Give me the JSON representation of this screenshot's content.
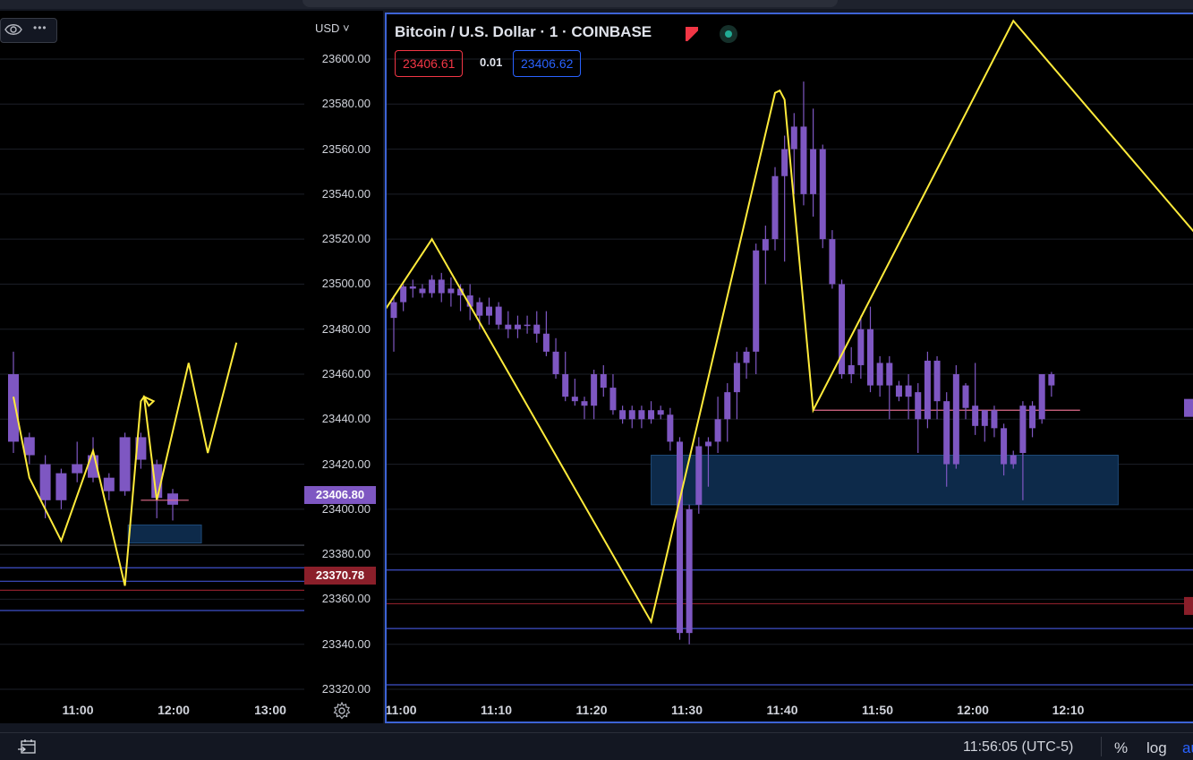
{
  "colors": {
    "candle": "#7e57c2",
    "zigzag": "#ffeb3b",
    "box_fill": "#0d2a4a",
    "box_stroke": "#1e4a78",
    "pane_border": "#3d63d6",
    "bid": "#f23645",
    "ask": "#2962ff",
    "hline_blue": "#3f4fc9",
    "hline_red": "#8b1f2a",
    "hline_pink": "#e06c8c"
  },
  "left_pane": {
    "toolbar": {
      "eye_icon": "eye-icon",
      "more_icon": "more-dots-icon",
      "more_label": "•••"
    },
    "currency_label": "USD ˅",
    "y_ticks": [
      "23600.00",
      "23580.00",
      "23560.00",
      "23540.00",
      "23520.00",
      "23500.00",
      "23480.00",
      "23460.00",
      "23440.00",
      "23420.00",
      "23400.00",
      "23380.00",
      "23360.00",
      "23340.00",
      "23320.00"
    ],
    "price_tag": "23406.80",
    "price_tag_2": "23370.78",
    "x_labels": [
      "11:00",
      "12:00",
      "13:00"
    ],
    "settings_icon": "gear-icon"
  },
  "right_pane": {
    "title": "Bitcoin / U.S. Dollar · 1 · COINBASE",
    "bid": "23406.61",
    "spread": "0.01",
    "ask": "23406.62",
    "x_labels": [
      "11:00",
      "11:10",
      "11:20",
      "11:30",
      "11:40",
      "11:50",
      "12:00",
      "12:10"
    ]
  },
  "chart_data": [
    {
      "type": "candlestick",
      "title": "Bitcoin / U.S. Dollar · 1 · COINBASE",
      "x_unit": "minutes",
      "ylim": [
        23318,
        23610
      ],
      "xlim_labels": [
        "11:00",
        "12:10"
      ],
      "candles": [
        [
          0,
          23485,
          23492,
          23470,
          23495
        ],
        [
          1,
          23492,
          23499,
          23488,
          23500
        ],
        [
          2,
          23499,
          23498,
          23494,
          23502
        ],
        [
          3,
          23498,
          23496,
          23494,
          23500
        ],
        [
          4,
          23496,
          23502,
          23494,
          23504
        ],
        [
          5,
          23502,
          23496,
          23492,
          23505
        ],
        [
          6,
          23496,
          23498,
          23490,
          23503
        ],
        [
          7,
          23498,
          23495,
          23488,
          23500
        ],
        [
          8,
          23495,
          23490,
          23484,
          23500
        ],
        [
          9,
          23492,
          23486,
          23480,
          23494
        ],
        [
          10,
          23486,
          23490,
          23482,
          23494
        ],
        [
          11,
          23490,
          23482,
          23480,
          23492
        ],
        [
          12,
          23482,
          23480,
          23476,
          23488
        ],
        [
          13,
          23480,
          23482,
          23476,
          23486
        ],
        [
          14,
          23482,
          23482,
          23478,
          23486
        ],
        [
          15,
          23482,
          23478,
          23474,
          23488
        ],
        [
          16,
          23478,
          23470,
          23468,
          23488
        ],
        [
          17,
          23470,
          23460,
          23458,
          23476
        ],
        [
          18,
          23460,
          23450,
          23448,
          23470
        ],
        [
          19,
          23450,
          23448,
          23446,
          23458
        ],
        [
          20,
          23448,
          23446,
          23440,
          23450
        ],
        [
          21,
          23446,
          23460,
          23440,
          23462
        ],
        [
          22,
          23460,
          23454,
          23450,
          23464
        ],
        [
          23,
          23454,
          23444,
          23442,
          23460
        ],
        [
          24,
          23444,
          23440,
          23438,
          23446
        ],
        [
          25,
          23440,
          23444,
          23436,
          23446
        ],
        [
          26,
          23444,
          23440,
          23436,
          23446
        ],
        [
          27,
          23440,
          23444,
          23438,
          23448
        ],
        [
          28,
          23444,
          23442,
          23440,
          23446
        ],
        [
          29,
          23442,
          23430,
          23426,
          23445
        ],
        [
          30,
          23430,
          23345,
          23342,
          23432
        ],
        [
          31,
          23345,
          23400,
          23340,
          23402
        ],
        [
          32,
          23402,
          23428,
          23398,
          23432
        ],
        [
          33,
          23428,
          23430,
          23410,
          23432
        ],
        [
          34,
          23430,
          23440,
          23425,
          23450
        ],
        [
          35,
          23440,
          23452,
          23430,
          23456
        ],
        [
          36,
          23452,
          23465,
          23440,
          23470
        ],
        [
          37,
          23465,
          23470,
          23458,
          23472
        ],
        [
          38,
          23470,
          23515,
          23460,
          23518
        ],
        [
          39,
          23515,
          23520,
          23500,
          23526
        ],
        [
          40,
          23520,
          23548,
          23515,
          23552
        ],
        [
          41,
          23548,
          23560,
          23510,
          23566
        ],
        [
          42,
          23560,
          23570,
          23540,
          23576
        ],
        [
          43,
          23570,
          23540,
          23535,
          23590
        ],
        [
          44,
          23540,
          23560,
          23530,
          23578
        ],
        [
          45,
          23560,
          23520,
          23516,
          23562
        ],
        [
          46,
          23520,
          23500,
          23498,
          23524
        ],
        [
          47,
          23500,
          23460,
          23458,
          23502
        ],
        [
          48,
          23460,
          23464,
          23456,
          23472
        ],
        [
          49,
          23464,
          23480,
          23458,
          23486
        ],
        [
          50,
          23480,
          23455,
          23452,
          23490
        ],
        [
          51,
          23455,
          23465,
          23450,
          23468
        ],
        [
          52,
          23465,
          23455,
          23440,
          23468
        ],
        [
          53,
          23455,
          23450,
          23448,
          23457
        ],
        [
          54,
          23450,
          23455,
          23440,
          23460
        ],
        [
          55,
          23452,
          23440,
          23425,
          23456
        ],
        [
          56,
          23440,
          23466,
          23436,
          23470
        ],
        [
          57,
          23466,
          23448,
          23440,
          23468
        ],
        [
          58,
          23448,
          23420,
          23410,
          23452
        ],
        [
          59,
          23420,
          23460,
          23418,
          23464
        ],
        [
          60,
          23445,
          23455,
          23440,
          23456
        ],
        [
          61,
          23446,
          23437,
          23433,
          23465
        ],
        [
          62,
          23437,
          23444,
          23430,
          23444
        ],
        [
          63,
          23444,
          23436,
          23432,
          23446
        ],
        [
          64,
          23436,
          23420,
          23415,
          23438
        ],
        [
          65,
          23420,
          23424,
          23418,
          23426
        ],
        [
          66,
          23425,
          23446,
          23404,
          23448
        ],
        [
          67,
          23436,
          23446,
          23432,
          23448
        ],
        [
          68,
          23440,
          23460,
          23438,
          23460
        ],
        [
          69,
          23455,
          23460,
          23450,
          23461
        ]
      ],
      "zigzag": [
        [
          -1,
          23488
        ],
        [
          4,
          23520
        ],
        [
          27,
          23350
        ],
        [
          40,
          23585
        ],
        [
          40.5,
          23586
        ],
        [
          41,
          23582
        ],
        [
          44,
          23444
        ],
        [
          65,
          23617
        ],
        [
          84,
          23523
        ]
      ],
      "zone": {
        "x_start": 27,
        "x_end": 76,
        "y_low": 23402,
        "y_high": 23424
      },
      "hlines": [
        {
          "y": 23444,
          "x_start": 44,
          "x_end": 72,
          "color": "pink"
        },
        {
          "y": 23373,
          "color": "blue"
        },
        {
          "y": 23358,
          "color": "red"
        },
        {
          "y": 23347,
          "color": "blue"
        },
        {
          "y": 23322,
          "color": "blue"
        }
      ]
    },
    {
      "type": "candlestick",
      "title": "",
      "ylim": [
        23318,
        23610
      ],
      "xlim_labels": [
        "11:00",
        "13:00"
      ],
      "candles": [
        [
          0,
          23460,
          23430,
          23425,
          23470
        ],
        [
          1,
          23432,
          23424,
          23420,
          23434
        ],
        [
          2,
          23420,
          23404,
          23396,
          23424
        ],
        [
          3,
          23404,
          23416,
          23400,
          23418
        ],
        [
          4,
          23416,
          23420,
          23412,
          23430
        ],
        [
          5,
          23424,
          23414,
          23412,
          23432
        ],
        [
          6,
          23414,
          23408,
          23404,
          23416
        ],
        [
          7,
          23408,
          23432,
          23406,
          23434
        ],
        [
          8,
          23422,
          23432,
          23418,
          23434
        ],
        [
          9,
          23420,
          23405,
          23396,
          23422
        ],
        [
          10,
          23402,
          23407,
          23395,
          23409
        ]
      ],
      "zigzag": [
        [
          0,
          23450
        ],
        [
          1,
          23414
        ],
        [
          3,
          23386
        ],
        [
          5,
          23426
        ],
        [
          7,
          23366
        ],
        [
          8,
          23448
        ],
        [
          8.2,
          23450
        ],
        [
          8.5,
          23446
        ],
        [
          8.8,
          23448
        ],
        [
          8.2,
          23450
        ],
        [
          9,
          23404
        ],
        [
          11,
          23465
        ],
        [
          12.2,
          23425
        ],
        [
          14,
          23474
        ]
      ],
      "zone": {
        "x_start": 7.2,
        "x_end": 11.8,
        "y_low": 23385,
        "y_high": 23393
      },
      "hlines": [
        {
          "y": 23384,
          "color": "gray"
        },
        {
          "y": 23374,
          "color": "blue"
        },
        {
          "y": 23368,
          "color": "blue"
        },
        {
          "y": 23364,
          "color": "red"
        },
        {
          "y": 23355,
          "color": "blue"
        }
      ]
    }
  ],
  "bottom_bar": {
    "calendar_icon": "calendar-goto-icon",
    "clock": "11:56:05 (UTC-5)",
    "percent": "%",
    "log": "log",
    "auto": "au"
  }
}
